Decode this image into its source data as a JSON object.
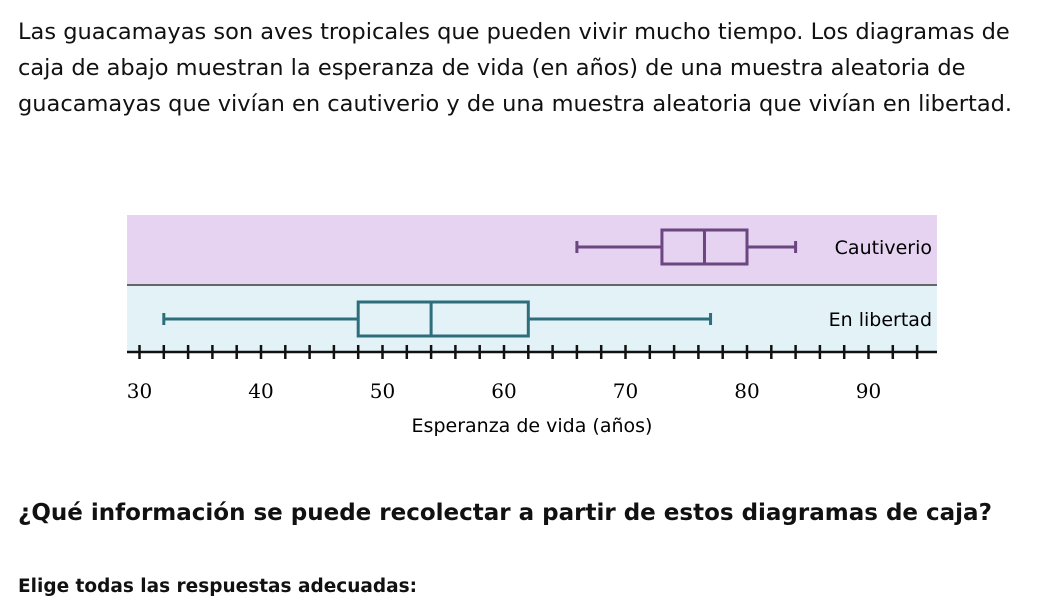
{
  "intro": "Las guacamayas son aves tropicales que pueden vivir mucho tiempo. Los diagramas de caja de abajo muestran la esperanza de vida (en años) de una muestra aleatoria de guacamayas que vivían en cautiverio y de una muestra aleatoria que vivían en libertad.",
  "question": "¿Qué información se puede recolectar a partir de estos diagramas de caja?",
  "instruction": "Elige todas las respuestas adecuadas:",
  "chart_data": {
    "type": "boxplot",
    "orientation": "horizontal",
    "xlabel": "Esperanza de vida (años)",
    "xlim": [
      30,
      94
    ],
    "tick_step": 2,
    "tick_labels": [
      "30",
      "40",
      "50",
      "60",
      "70",
      "80",
      "90"
    ],
    "tick_label_values": [
      30,
      40,
      50,
      60,
      70,
      80,
      90
    ],
    "series": [
      {
        "name": "Cautiverio",
        "min": 66,
        "q1": 73,
        "median": 76.5,
        "q3": 80,
        "max": 84,
        "color": "#6b4680",
        "background": "#e5d3f1"
      },
      {
        "name": "En libertad",
        "min": 32,
        "q1": 48,
        "median": 54,
        "q3": 62,
        "max": 77,
        "color": "#2e6e7c",
        "background": "#e2f2f7"
      }
    ]
  }
}
